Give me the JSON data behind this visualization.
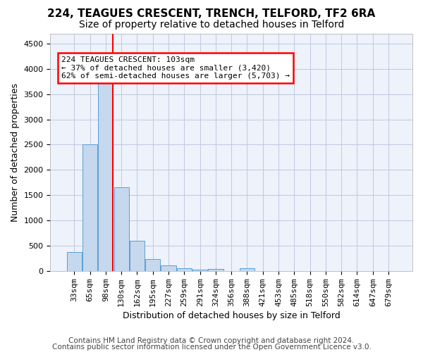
{
  "title": "224, TEAGUES CRESCENT, TRENCH, TELFORD, TF2 6RA",
  "subtitle": "Size of property relative to detached houses in Telford",
  "xlabel": "Distribution of detached houses by size in Telford",
  "ylabel": "Number of detached properties",
  "bin_labels": [
    "33sqm",
    "65sqm",
    "98sqm",
    "130sqm",
    "162sqm",
    "195sqm",
    "227sqm",
    "259sqm",
    "291sqm",
    "324sqm",
    "356sqm",
    "388sqm",
    "421sqm",
    "453sqm",
    "485sqm",
    "518sqm",
    "550sqm",
    "582sqm",
    "614sqm",
    "647sqm",
    "679sqm"
  ],
  "bar_values": [
    370,
    2500,
    3750,
    1650,
    590,
    230,
    110,
    60,
    30,
    35,
    0,
    60,
    0,
    0,
    0,
    0,
    0,
    0,
    0,
    0,
    0
  ],
  "bar_color": "#c5d8ed",
  "bar_edge_color": "#5a9fd4",
  "red_line_x": 2,
  "ylim": [
    0,
    4700
  ],
  "yticks": [
    0,
    500,
    1000,
    1500,
    2000,
    2500,
    3000,
    3500,
    4000,
    4500
  ],
  "annotation_text": "224 TEAGUES CRESCENT: 103sqm\n← 37% of detached houses are smaller (3,420)\n62% of semi-detached houses are larger (5,703) →",
  "footer_line1": "Contains HM Land Registry data © Crown copyright and database right 2024.",
  "footer_line2": "Contains public sector information licensed under the Open Government Licence v3.0.",
  "background_color": "#edf2fb",
  "grid_color": "#c0c8e0",
  "title_fontsize": 11,
  "subtitle_fontsize": 10,
  "axis_label_fontsize": 9,
  "tick_fontsize": 8,
  "footer_fontsize": 7.5
}
